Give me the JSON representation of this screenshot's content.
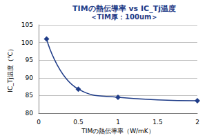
{
  "chart_data": {
    "type": "line",
    "title": "TIMの熱伝導率 vs IC_Tj温度",
    "subtitle": "＜TIM厚：100um＞",
    "x_label": "TIMの熱伝導率（W/mK）",
    "y_label": "IC_Tj温度（℃）",
    "x": [
      0.1,
      0.5,
      1,
      2
    ],
    "values": [
      101,
      86.8,
      84.5,
      83.5
    ],
    "color": "#1f3c88",
    "marker": "diamond",
    "line_style": "solid",
    "xlim": [
      0,
      2
    ],
    "xticks": [
      0,
      0.5,
      1,
      1.5,
      2
    ],
    "ylim": [
      80,
      105
    ],
    "yticks": [
      80,
      85,
      90,
      95,
      100,
      105
    ],
    "grid": true
  }
}
